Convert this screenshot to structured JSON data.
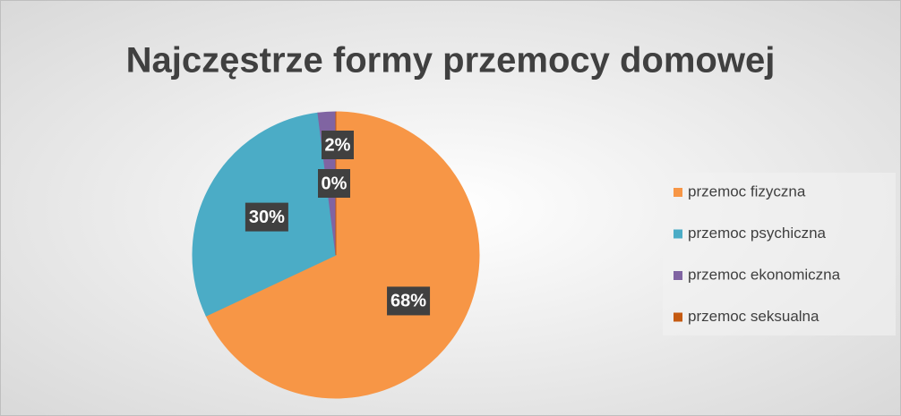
{
  "chart_data": {
    "type": "pie",
    "title": "Najczęstrze formy przemocy domowej",
    "categories": [
      "przemoc fizyczna",
      "przemoc psychiczna",
      "przemoc ekonomiczna",
      "przemoc seksualna"
    ],
    "values": [
      68,
      30,
      2,
      0
    ],
    "value_labels": [
      "68%",
      "30%",
      "2%",
      "0%"
    ],
    "colors": [
      "#f79646",
      "#4bacc6",
      "#8064a2",
      "#c55a11"
    ],
    "legend": "right"
  }
}
